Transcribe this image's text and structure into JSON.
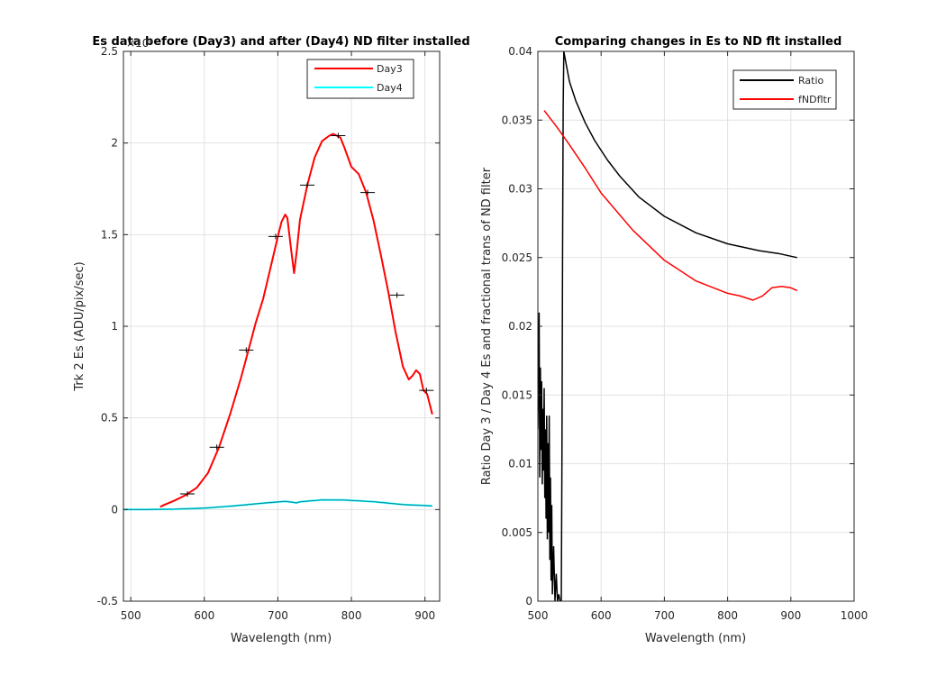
{
  "chart_data": [
    {
      "type": "line",
      "title": "Es data before (Day3) and after (Day4) ND filter installed",
      "exponent_label": "×10⁴",
      "xlabel": "Wavelength (nm)",
      "ylabel": "Trk 2 Es (ADU/pix/sec)",
      "xlim": [
        490,
        920
      ],
      "ylim": [
        -0.5,
        2.5
      ],
      "xticks": [
        500,
        600,
        700,
        800,
        900
      ],
      "yticks": [
        -0.5,
        0,
        0.5,
        1,
        1.5,
        2,
        2.5
      ],
      "ytick_labels": [
        "-0.5",
        "0",
        "0.5",
        "1",
        "1.5",
        "2",
        "2.5"
      ],
      "grid": true,
      "legend": "top-right",
      "series": [
        {
          "name": "Day3",
          "color": "#ff0000",
          "x": [
            540,
            545,
            560,
            575,
            590,
            605,
            620,
            635,
            650,
            660,
            670,
            680,
            690,
            700,
            705,
            710,
            713,
            718,
            722,
            726,
            730,
            740,
            750,
            760,
            770,
            775,
            780,
            785,
            790,
            800,
            810,
            820,
            830,
            840,
            850,
            860,
            870,
            878,
            883,
            888,
            893,
            898,
            903,
            910
          ],
          "values": [
            0.015,
            0.025,
            0.05,
            0.08,
            0.12,
            0.2,
            0.34,
            0.52,
            0.72,
            0.87,
            1.02,
            1.15,
            1.32,
            1.49,
            1.57,
            1.61,
            1.59,
            1.42,
            1.29,
            1.42,
            1.58,
            1.77,
            1.92,
            2.01,
            2.04,
            2.05,
            2.04,
            2.03,
            1.98,
            1.87,
            1.83,
            1.73,
            1.58,
            1.39,
            1.19,
            0.97,
            0.78,
            0.71,
            0.73,
            0.76,
            0.74,
            0.65,
            0.63,
            0.52
          ]
        },
        {
          "name": "Day4",
          "color": "#00ffff",
          "x": [
            490,
            520,
            560,
            600,
            640,
            680,
            710,
            720,
            725,
            730,
            760,
            790,
            830,
            870,
            910
          ],
          "values": [
            0.0,
            0.0,
            0.002,
            0.008,
            0.02,
            0.035,
            0.045,
            0.04,
            0.036,
            0.042,
            0.053,
            0.052,
            0.043,
            0.027,
            0.02
          ]
        }
      ],
      "error_markers": {
        "x": [
          577,
          617,
          657,
          697,
          740,
          782,
          822,
          862,
          902
        ],
        "values": [
          0.085,
          0.34,
          0.87,
          1.49,
          1.77,
          2.04,
          1.73,
          1.17,
          0.65
        ]
      }
    },
    {
      "type": "line",
      "title": "Comparing changes in Es to ND flt installed",
      "xlabel": "Wavelength (nm)",
      "ylabel": "Ratio Day 3 / Day 4 Es  and fractional trans of ND filter",
      "xlim": [
        500,
        1000
      ],
      "ylim": [
        0,
        0.04
      ],
      "xticks": [
        500,
        600,
        700,
        800,
        900,
        1000
      ],
      "yticks": [
        0,
        0.005,
        0.01,
        0.015,
        0.02,
        0.025,
        0.03,
        0.035,
        0.04
      ],
      "ytick_labels": [
        "0",
        "0.005",
        "0.01",
        "0.015",
        "0.02",
        "0.025",
        "0.03",
        "0.035",
        "0.04"
      ],
      "grid": true,
      "legend": "top-right",
      "series": [
        {
          "name": "Ratio",
          "color": "#000000",
          "x": [
            541,
            545,
            550,
            560,
            575,
            590,
            610,
            630,
            660,
            700,
            750,
            800,
            850,
            880,
            910
          ],
          "values": [
            0.04,
            0.039,
            0.0378,
            0.0364,
            0.0348,
            0.0335,
            0.0321,
            0.0309,
            0.0294,
            0.028,
            0.0268,
            0.026,
            0.0255,
            0.0253,
            0.025
          ]
        },
        {
          "name": "fNDfltr",
          "color": "#ff0000",
          "x": [
            510,
            530,
            550,
            575,
            600,
            650,
            700,
            750,
            800,
            820,
            840,
            855,
            870,
            885,
            900,
            910
          ],
          "values": [
            0.0357,
            0.0345,
            0.0332,
            0.0315,
            0.0297,
            0.027,
            0.0248,
            0.0233,
            0.0224,
            0.0222,
            0.0219,
            0.0222,
            0.0228,
            0.0229,
            0.0228,
            0.0226
          ]
        }
      ],
      "noise_segment": {
        "x": [
          500,
          502,
          503,
          504,
          505,
          506,
          507,
          508,
          509,
          510,
          511,
          512,
          513,
          514,
          515,
          516,
          517,
          518,
          519,
          520,
          521,
          522,
          523,
          525,
          527,
          529,
          531,
          533,
          535,
          537,
          538,
          539,
          540,
          541
        ],
        "values": [
          0.0125,
          0.021,
          0.009,
          0.017,
          0.011,
          0.016,
          0.0085,
          0.014,
          0.0095,
          0.0155,
          0.0075,
          0.0125,
          0.006,
          0.0135,
          0.0045,
          0.0115,
          0.005,
          0.0135,
          0.003,
          0.009,
          0.0015,
          0.007,
          0.0005,
          0.004,
          0.0,
          0.002,
          0.0,
          0.0005,
          0.0,
          0.0,
          0.01,
          0.025,
          0.036,
          0.04
        ]
      }
    }
  ]
}
